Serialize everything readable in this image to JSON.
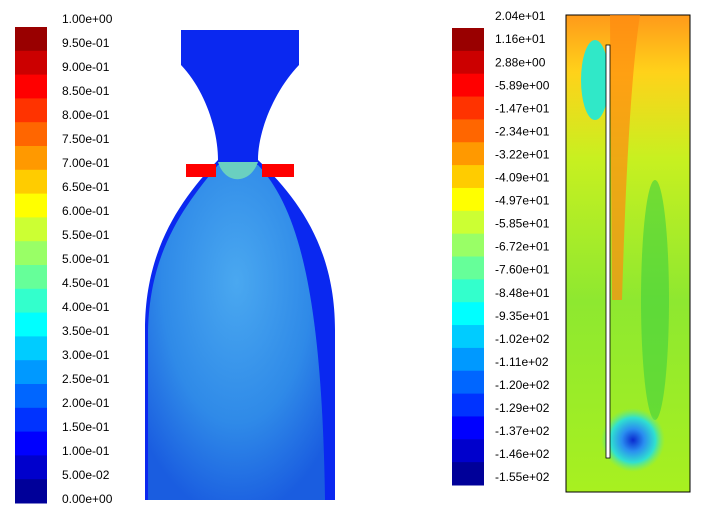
{
  "left_colorbar": {
    "labels": [
      "1.00e+00",
      "9.50e-01",
      "9.00e-01",
      "8.50e-01",
      "8.00e-01",
      "7.50e-01",
      "7.00e-01",
      "6.50e-01",
      "6.00e-01",
      "5.50e-01",
      "5.00e-01",
      "4.50e-01",
      "4.00e-01",
      "3.50e-01",
      "3.00e-01",
      "2.50e-01",
      "2.00e-01",
      "1.50e-01",
      "1.00e-01",
      "5.00e-02",
      "0.00e+00"
    ]
  },
  "right_colorbar": {
    "labels": [
      "2.04e+01",
      "1.16e+01",
      "2.88e+00",
      "-5.89e+00",
      "-1.47e+01",
      "-2.34e+01",
      "-3.22e+01",
      "-4.09e+01",
      "-4.97e+01",
      "-5.85e+01",
      "-6.72e+01",
      "-7.60e+01",
      "-8.48e+01",
      "-9.35e+01",
      "-1.02e+02",
      "-1.11e+02",
      "-1.20e+02",
      "-1.29e+02",
      "-1.37e+02",
      "-1.46e+02",
      "-1.55e+02"
    ]
  }
}
